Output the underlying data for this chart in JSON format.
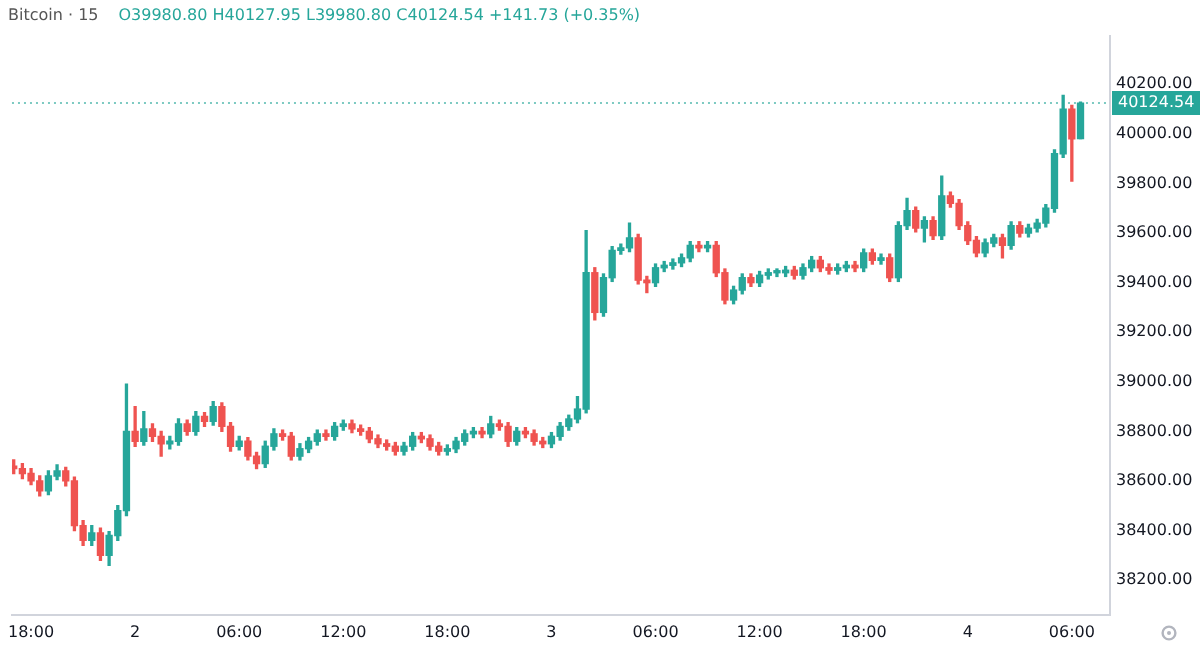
{
  "chart_data": {
    "type": "candlestick",
    "title": "Bitcoin · 15",
    "subtitle": "O39980.80 H40127.95 L39980.80 C40124.54 +141.73 (+0.35%)",
    "categories": [
      null,
      null,
      "18:00",
      null,
      null,
      null,
      null,
      null,
      null,
      null,
      null,
      null,
      null,
      null,
      "2",
      null,
      null,
      null,
      null,
      null,
      null,
      null,
      null,
      null,
      null,
      null,
      "06:00",
      null,
      null,
      null,
      null,
      null,
      null,
      null,
      null,
      null,
      null,
      null,
      "12:00",
      null,
      null,
      null,
      null,
      null,
      null,
      null,
      null,
      null,
      null,
      null,
      "18:00",
      null,
      null,
      null,
      null,
      null,
      null,
      null,
      null,
      null,
      null,
      null,
      "3",
      null,
      null,
      null,
      null,
      null,
      null,
      null,
      null,
      null,
      null,
      null,
      "06:00",
      null,
      null,
      null,
      null,
      null,
      null,
      null,
      null,
      null,
      null,
      null,
      "12:00",
      null,
      null,
      null,
      null,
      null,
      null,
      null,
      null,
      null,
      null,
      null,
      "18:00",
      null,
      null,
      null,
      null,
      null,
      null,
      null,
      null,
      null,
      null,
      null,
      "4",
      null,
      null,
      null,
      null,
      null,
      null,
      null,
      null,
      null,
      null,
      null,
      "06:00",
      null
    ],
    "ohlc": [
      [
        38660,
        38685,
        38630,
        38650
      ],
      [
        38650,
        38670,
        38610,
        38630
      ],
      [
        38630,
        38650,
        38585,
        38600
      ],
      [
        38600,
        38620,
        38540,
        38560
      ],
      [
        38560,
        38640,
        38545,
        38620
      ],
      [
        38620,
        38665,
        38605,
        38640
      ],
      [
        38640,
        38655,
        38580,
        38600
      ],
      [
        38600,
        38615,
        38400,
        38420
      ],
      [
        38420,
        38440,
        38340,
        38360
      ],
      [
        38360,
        38420,
        38340,
        38390
      ],
      [
        38390,
        38410,
        38280,
        38300
      ],
      [
        38300,
        38395,
        38260,
        38380
      ],
      [
        38380,
        38500,
        38360,
        38480
      ],
      [
        38480,
        38990,
        38460,
        38800
      ],
      [
        38800,
        38900,
        38740,
        38760
      ],
      [
        38760,
        38880,
        38745,
        38810
      ],
      [
        38810,
        38830,
        38760,
        38780
      ],
      [
        38780,
        38800,
        38700,
        38750
      ],
      [
        38750,
        38780,
        38730,
        38760
      ],
      [
        38760,
        38850,
        38745,
        38830
      ],
      [
        38830,
        38845,
        38785,
        38800
      ],
      [
        38800,
        38880,
        38785,
        38860
      ],
      [
        38860,
        38875,
        38820,
        38840
      ],
      [
        38840,
        38920,
        38825,
        38900
      ],
      [
        38900,
        38915,
        38800,
        38820
      ],
      [
        38820,
        38835,
        38720,
        38740
      ],
      [
        38740,
        38780,
        38725,
        38760
      ],
      [
        38760,
        38775,
        38685,
        38700
      ],
      [
        38700,
        38715,
        38650,
        38670
      ],
      [
        38670,
        38760,
        38655,
        38740
      ],
      [
        38740,
        38810,
        38725,
        38790
      ],
      [
        38790,
        38805,
        38765,
        38780
      ],
      [
        38780,
        38795,
        38685,
        38700
      ],
      [
        38700,
        38750,
        38685,
        38730
      ],
      [
        38730,
        38775,
        38715,
        38760
      ],
      [
        38760,
        38805,
        38745,
        38790
      ],
      [
        38790,
        38805,
        38765,
        38780
      ],
      [
        38780,
        38835,
        38765,
        38820
      ],
      [
        38820,
        38845,
        38805,
        38830
      ],
      [
        38830,
        38845,
        38795,
        38810
      ],
      [
        38810,
        38825,
        38785,
        38800
      ],
      [
        38800,
        38815,
        38755,
        38770
      ],
      [
        38770,
        38785,
        38735,
        38750
      ],
      [
        38750,
        38765,
        38725,
        38740
      ],
      [
        38740,
        38755,
        38705,
        38720
      ],
      [
        38720,
        38755,
        38705,
        38740
      ],
      [
        38740,
        38795,
        38725,
        38780
      ],
      [
        38780,
        38795,
        38755,
        38770
      ],
      [
        38770,
        38785,
        38725,
        38740
      ],
      [
        38740,
        38755,
        38705,
        38720
      ],
      [
        38720,
        38745,
        38705,
        38730
      ],
      [
        38730,
        38775,
        38715,
        38760
      ],
      [
        38760,
        38805,
        38745,
        38790
      ],
      [
        38790,
        38815,
        38775,
        38800
      ],
      [
        38800,
        38815,
        38775,
        38790
      ],
      [
        38790,
        38860,
        38775,
        38830
      ],
      [
        38830,
        38845,
        38805,
        38820
      ],
      [
        38820,
        38835,
        38740,
        38760
      ],
      [
        38760,
        38815,
        38745,
        38800
      ],
      [
        38800,
        38815,
        38775,
        38790
      ],
      [
        38790,
        38805,
        38745,
        38760
      ],
      [
        38760,
        38775,
        38735,
        38750
      ],
      [
        38750,
        38795,
        38735,
        38780
      ],
      [
        38780,
        38835,
        38765,
        38820
      ],
      [
        38820,
        38865,
        38805,
        38850
      ],
      [
        38850,
        38940,
        38835,
        38890
      ],
      [
        38890,
        39610,
        38875,
        39440
      ],
      [
        39440,
        39460,
        39250,
        39280
      ],
      [
        39280,
        39435,
        39265,
        39420
      ],
      [
        39420,
        39545,
        39405,
        39530
      ],
      [
        39530,
        39555,
        39515,
        39540
      ],
      [
        39540,
        39640,
        39525,
        39580
      ],
      [
        39580,
        39595,
        39395,
        39410
      ],
      [
        39410,
        39425,
        39360,
        39400
      ],
      [
        39400,
        39475,
        39385,
        39460
      ],
      [
        39460,
        39485,
        39445,
        39470
      ],
      [
        39470,
        39495,
        39455,
        39480
      ],
      [
        39480,
        39515,
        39465,
        39500
      ],
      [
        39500,
        39565,
        39485,
        39550
      ],
      [
        39550,
        39565,
        39525,
        39540
      ],
      [
        39540,
        39565,
        39525,
        39550
      ],
      [
        39550,
        39565,
        39425,
        39440
      ],
      [
        39440,
        39455,
        39315,
        39330
      ],
      [
        39330,
        39385,
        39315,
        39370
      ],
      [
        39370,
        39435,
        39355,
        39420
      ],
      [
        39420,
        39435,
        39385,
        39400
      ],
      [
        39400,
        39445,
        39385,
        39430
      ],
      [
        39430,
        39455,
        39415,
        39440
      ],
      [
        39440,
        39455,
        39425,
        39440
      ],
      [
        39440,
        39465,
        39425,
        39450
      ],
      [
        39450,
        39465,
        39415,
        39430
      ],
      [
        39430,
        39475,
        39415,
        39460
      ],
      [
        39460,
        39505,
        39445,
        39490
      ],
      [
        39490,
        39505,
        39445,
        39460
      ],
      [
        39460,
        39475,
        39435,
        39450
      ],
      [
        39450,
        39475,
        39435,
        39460
      ],
      [
        39460,
        39485,
        39445,
        39470
      ],
      [
        39470,
        39485,
        39445,
        39460
      ],
      [
        39460,
        39535,
        39445,
        39520
      ],
      [
        39520,
        39535,
        39475,
        39490
      ],
      [
        39490,
        39515,
        39475,
        39500
      ],
      [
        39500,
        39515,
        39405,
        39420
      ],
      [
        39420,
        39645,
        39405,
        39630
      ],
      [
        39630,
        39740,
        39615,
        39690
      ],
      [
        39690,
        39705,
        39605,
        39620
      ],
      [
        39620,
        39665,
        39565,
        39650
      ],
      [
        39650,
        39665,
        39575,
        39590
      ],
      [
        39590,
        39830,
        39575,
        39750
      ],
      [
        39750,
        39765,
        39705,
        39720
      ],
      [
        39720,
        39735,
        39615,
        39630
      ],
      [
        39630,
        39645,
        39555,
        39570
      ],
      [
        39570,
        39585,
        39505,
        39520
      ],
      [
        39520,
        39575,
        39505,
        39560
      ],
      [
        39560,
        39595,
        39545,
        39580
      ],
      [
        39580,
        39595,
        39500,
        39550
      ],
      [
        39550,
        39645,
        39535,
        39630
      ],
      [
        39630,
        39645,
        39585,
        39600
      ],
      [
        39600,
        39635,
        39585,
        39620
      ],
      [
        39620,
        39655,
        39605,
        39640
      ],
      [
        39640,
        39715,
        39625,
        39700
      ],
      [
        39700,
        39935,
        39685,
        39920
      ],
      [
        39920,
        40155,
        39905,
        40100
      ],
      [
        40100,
        40115,
        39810,
        39980
      ],
      [
        39980.8,
        40127.95,
        39980.8,
        40124.54
      ]
    ],
    "ylim": [
      38060,
      40395
    ],
    "yticks": [
      {
        "value": 38200,
        "label": "38200.00"
      },
      {
        "value": 38400,
        "label": "38400.00"
      },
      {
        "value": 38600,
        "label": "38600.00"
      },
      {
        "value": 38800,
        "label": "38800.00"
      },
      {
        "value": 39000,
        "label": "39000.00"
      },
      {
        "value": 39200,
        "label": "39200.00"
      },
      {
        "value": 39400,
        "label": "39400.00"
      },
      {
        "value": 39600,
        "label": "39600.00"
      },
      {
        "value": 39800,
        "label": "39800.00"
      },
      {
        "value": 40000,
        "label": "40000.00"
      },
      {
        "value": 40200,
        "label": "40200.00"
      }
    ],
    "ref_lines": [
      {
        "axis": "y",
        "value": 40124.54,
        "label": "40124.54",
        "color": "#26a69a",
        "line_style": "dotted"
      }
    ]
  }
}
